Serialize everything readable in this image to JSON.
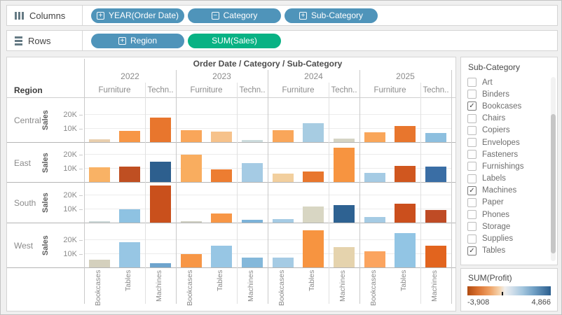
{
  "shelves": {
    "columns": {
      "label": "Columns",
      "pills": [
        {
          "label": "YEAR(Order Date)",
          "expander": "+",
          "kind": "dimension"
        },
        {
          "label": "Category",
          "expander": "−",
          "kind": "dimension"
        },
        {
          "label": "Sub-Category",
          "expander": "+",
          "kind": "dimension"
        }
      ]
    },
    "rows": {
      "label": "Rows",
      "pills": [
        {
          "label": "Region",
          "expander": "+",
          "kind": "dimension"
        },
        {
          "label": "SUM(Sales)",
          "expander": null,
          "kind": "measure"
        }
      ]
    }
  },
  "colors": {
    "dimension_pill": "#4f94ba",
    "measure_pill": "#08b284",
    "legend_min": "#b04b10",
    "legend_max": "#2b5e8e"
  },
  "chart_data": {
    "type": "bar",
    "title": "Order Date / Category / Sub-Category",
    "region_header": "Region",
    "axis_label": "Sales",
    "y_ticks": [
      {
        "value": 20000,
        "label": "20K"
      },
      {
        "value": 10000,
        "label": "10K"
      }
    ],
    "y_max": 28000,
    "years": [
      "2022",
      "2023",
      "2024",
      "2025"
    ],
    "category_cells": [
      {
        "label": "Furniture",
        "full_label": "Furniture",
        "subcats": [
          "Bookcases",
          "Tables"
        ]
      },
      {
        "label": "Techn..",
        "full_label": "Technology",
        "subcats": [
          "Machines"
        ]
      }
    ],
    "bar_order_per_year": [
      "Bookcases",
      "Tables",
      "Machines"
    ],
    "color_encoding": "SUM(Profit)",
    "series": [
      {
        "region": "Central",
        "values": [
          2500,
          8500,
          18000,
          9000,
          8000,
          2000,
          9000,
          14000,
          3000,
          7500,
          12000,
          7000
        ],
        "colors": [
          "#e9cfae",
          "#f79646",
          "#e8762d",
          "#f9a65a",
          "#f6c28b",
          "#ccdbdd",
          "#f9a65a",
          "#a7cce2",
          "#d5d4c5",
          "#f9a65a",
          "#e8762d",
          "#8dbfdf"
        ]
      },
      {
        "region": "East",
        "values": [
          11000,
          11500,
          15000,
          20000,
          9500,
          14000,
          6500,
          8000,
          25000,
          7000,
          12000,
          11500
        ],
        "colors": [
          "#f9b265",
          "#bf4f22",
          "#2d5f8e",
          "#f9ad5f",
          "#ed7d31",
          "#a5cbe4",
          "#f2cf9e",
          "#e8762d",
          "#f79440",
          "#a5cbe4",
          "#d0571f",
          "#3a6ea5"
        ]
      },
      {
        "region": "South",
        "values": [
          1500,
          10000,
          27000,
          1500,
          7000,
          2500,
          3000,
          12000,
          13000,
          4500,
          14000,
          9500
        ],
        "colors": [
          "#ccd8d8",
          "#8ec2e2",
          "#c9501c",
          "#cfcfc2",
          "#f79646",
          "#7cb2d8",
          "#a5cbe4",
          "#d8d6c3",
          "#2e6292",
          "#a5cbe4",
          "#cb4f1d",
          "#bf4b25"
        ]
      },
      {
        "region": "West",
        "values": [
          6000,
          18500,
          3500,
          10000,
          16000,
          7500,
          7500,
          27000,
          15000,
          12000,
          25000,
          16000
        ],
        "colors": [
          "#d4d0bd",
          "#97c6e4",
          "#6ea4cd",
          "#f79646",
          "#97c6e4",
          "#84b8da",
          "#a5cbe4",
          "#f79440",
          "#e5d3ad",
          "#fba45f",
          "#92c5e4",
          "#e2641e"
        ]
      }
    ]
  },
  "filter_panel": {
    "title": "Sub-Category",
    "items": [
      {
        "label": "Art",
        "checked": false
      },
      {
        "label": "Binders",
        "checked": false
      },
      {
        "label": "Bookcases",
        "checked": true
      },
      {
        "label": "Chairs",
        "checked": false
      },
      {
        "label": "Copiers",
        "checked": false
      },
      {
        "label": "Envelopes",
        "checked": false
      },
      {
        "label": "Fasteners",
        "checked": false
      },
      {
        "label": "Furnishings",
        "checked": false
      },
      {
        "label": "Labels",
        "checked": false
      },
      {
        "label": "Machines",
        "checked": true
      },
      {
        "label": "Paper",
        "checked": false
      },
      {
        "label": "Phones",
        "checked": false
      },
      {
        "label": "Storage",
        "checked": false
      },
      {
        "label": "Supplies",
        "checked": false
      },
      {
        "label": "Tables",
        "checked": true
      }
    ]
  },
  "legend": {
    "title": "SUM(Profit)",
    "min_label": "-3,908",
    "max_label": "4,866",
    "zero_position": 0.41
  }
}
